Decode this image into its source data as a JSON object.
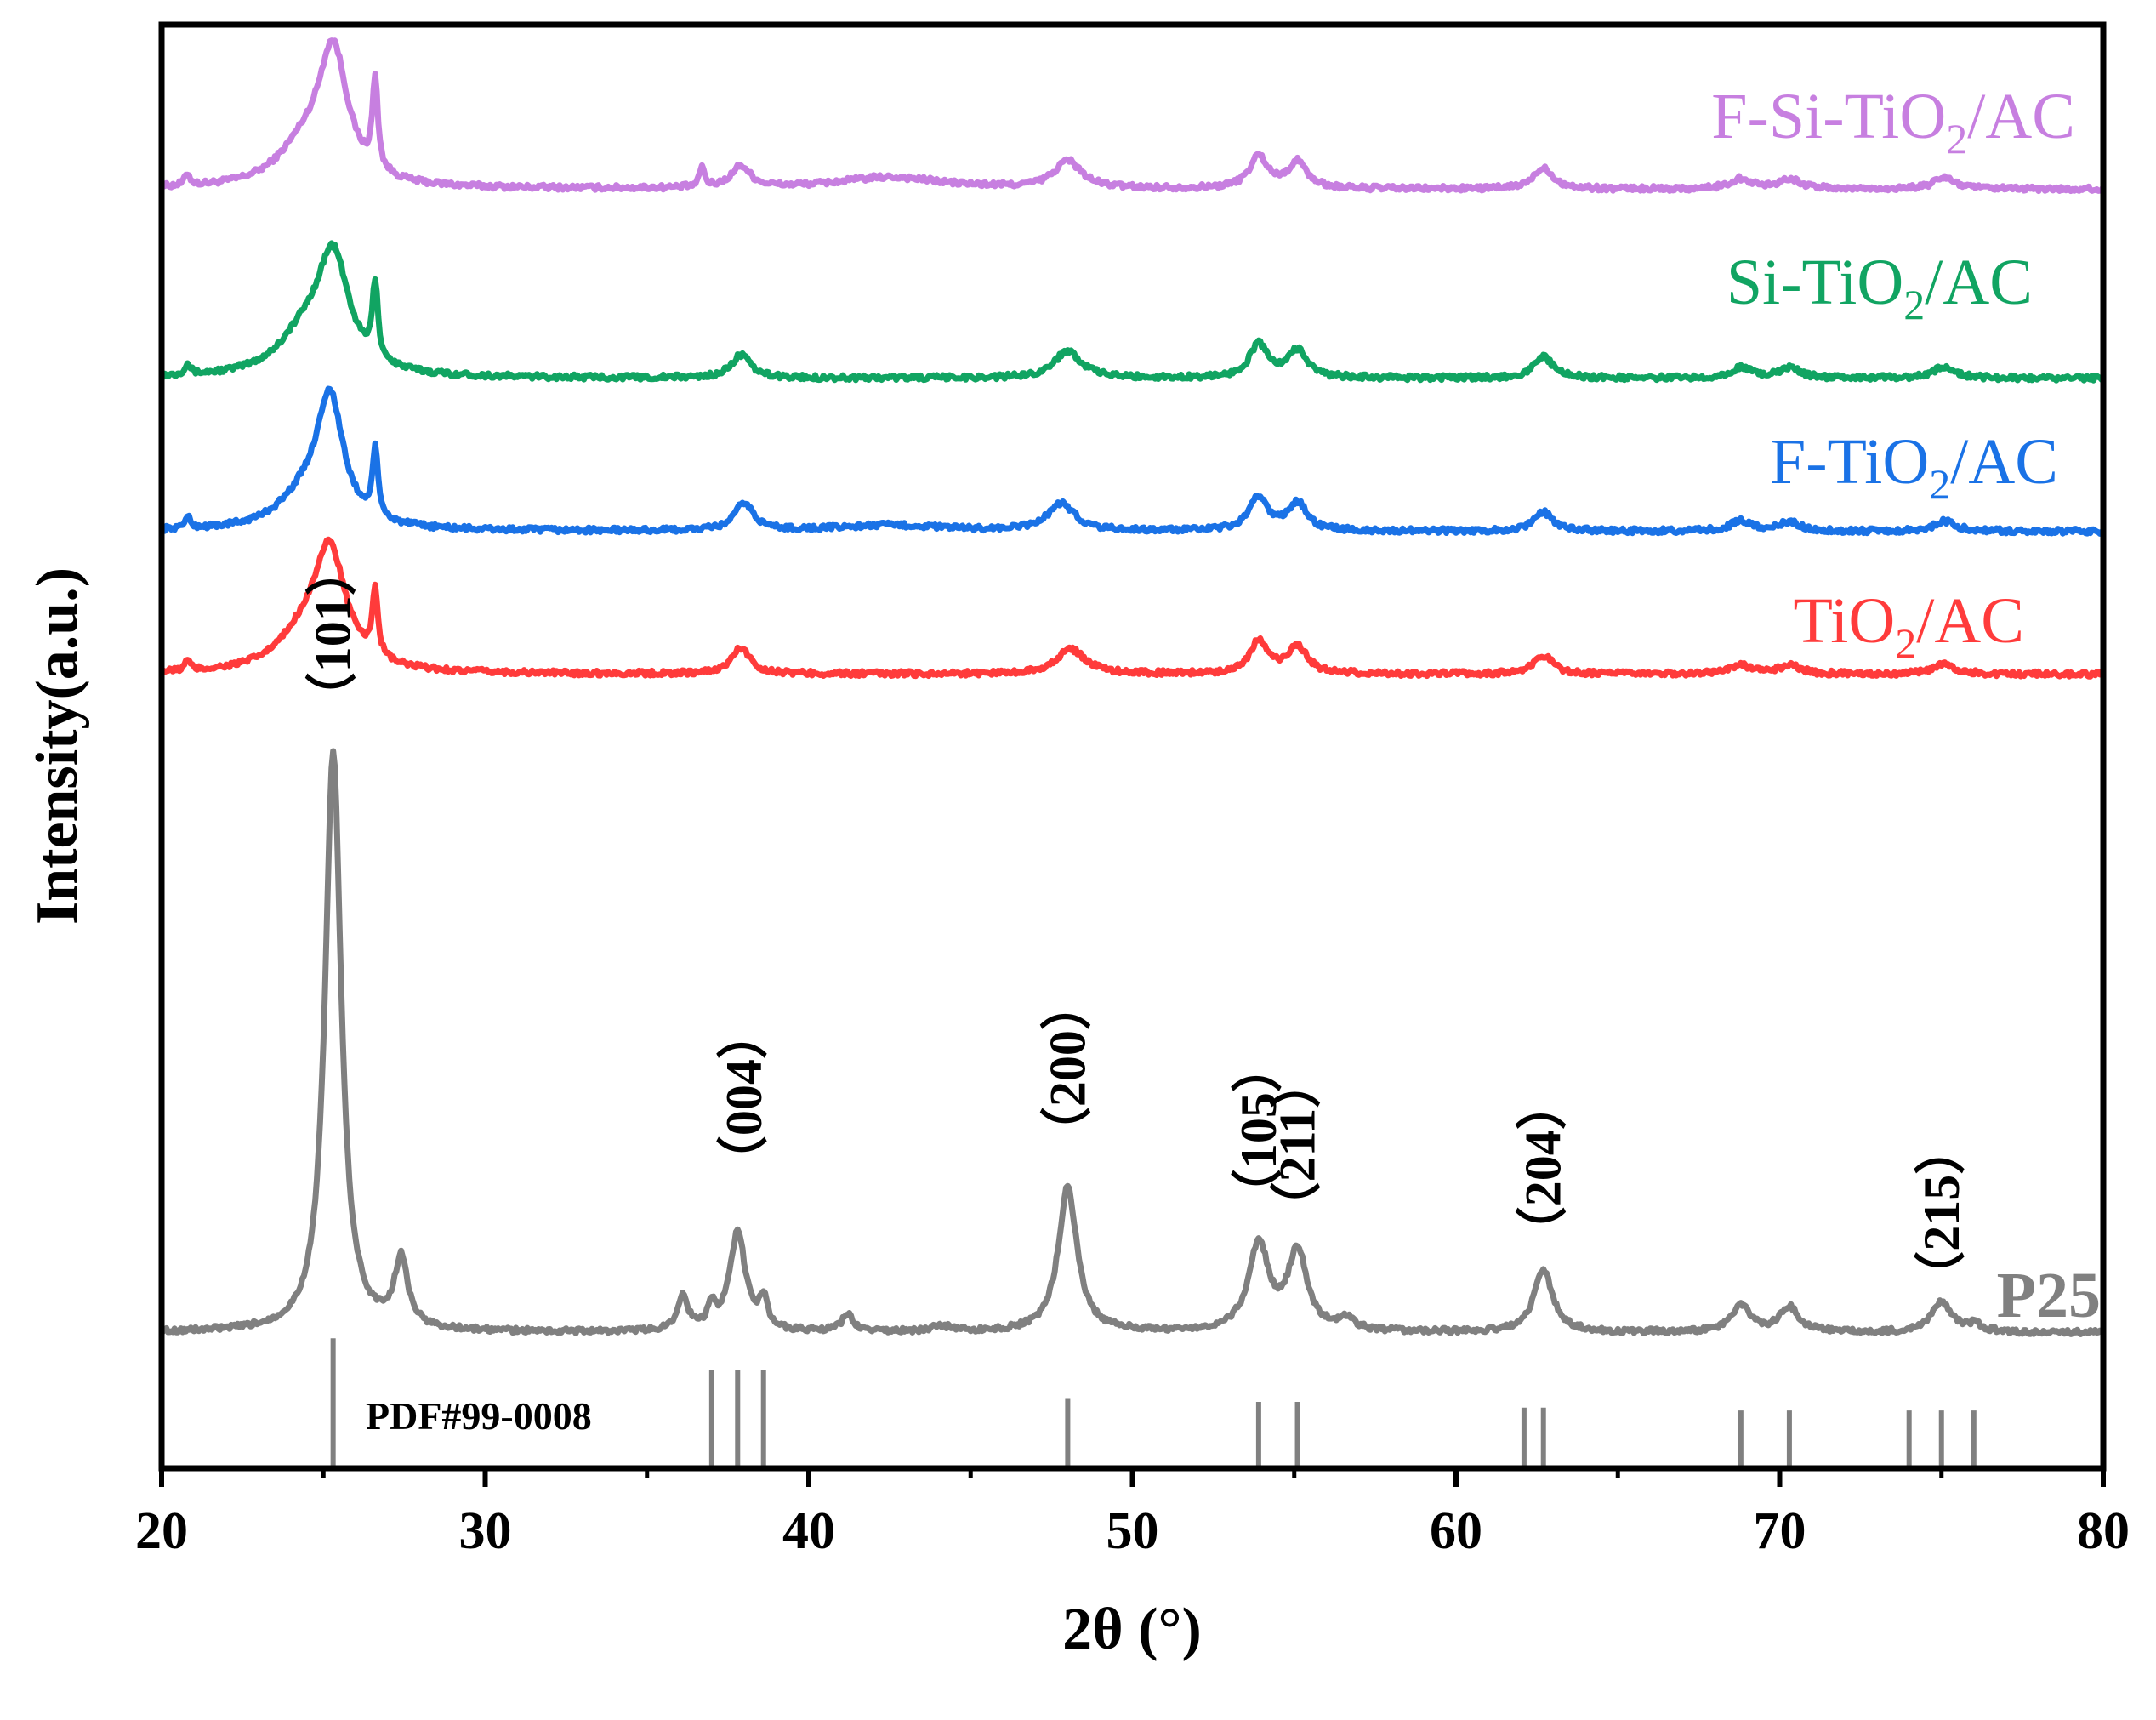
{
  "chart_data": {
    "type": "line",
    "title": "",
    "xlabel": "2θ (°)",
    "ylabel": "Intensity(a.u.)",
    "xlim": [
      20,
      80
    ],
    "ylim": [
      0,
      100
    ],
    "xticks": [
      20,
      30,
      40,
      50,
      60,
      70,
      80
    ],
    "xtick_labels": [
      "20",
      "30",
      "40",
      "50",
      "60",
      "70",
      "80"
    ],
    "series": [
      {
        "name": "F-Si-TiO2/AC",
        "label_main": "F-Si-TiO",
        "label_sub": "2",
        "label_tail": "/AC",
        "color": "#c77fe0",
        "baseline": 88.6,
        "peaks": [
          {
            "x": 25.3,
            "h": 8.9,
            "w": 0.55
          },
          {
            "x": 24.4,
            "h": 2.5,
            "w": 1.0
          },
          {
            "x": 26.6,
            "h": 6.2,
            "w": 0.1
          },
          {
            "x": 20.8,
            "h": 0.8,
            "w": 0.1
          },
          {
            "x": 36.7,
            "h": 1.5,
            "w": 0.08
          },
          {
            "x": 37.9,
            "h": 1.5,
            "w": 0.35
          },
          {
            "x": 42.5,
            "h": 0.8,
            "w": 2.0
          },
          {
            "x": 48.0,
            "h": 1.9,
            "w": 0.5
          },
          {
            "x": 53.9,
            "h": 2.2,
            "w": 0.35
          },
          {
            "x": 55.1,
            "h": 1.8,
            "w": 0.35
          },
          {
            "x": 62.7,
            "h": 1.5,
            "w": 0.35
          },
          {
            "x": 68.8,
            "h": 0.7,
            "w": 0.4
          },
          {
            "x": 70.3,
            "h": 0.7,
            "w": 0.4
          },
          {
            "x": 75.1,
            "h": 0.8,
            "w": 0.4
          }
        ]
      },
      {
        "name": "Si-TiO2/AC",
        "label_main": "Si-TiO",
        "label_sub": "2",
        "label_tail": "/AC",
        "color": "#11a462",
        "baseline": 75.5,
        "peaks": [
          {
            "x": 25.3,
            "h": 7.8,
            "w": 0.6
          },
          {
            "x": 24.4,
            "h": 2.5,
            "w": 1.0
          },
          {
            "x": 26.6,
            "h": 5.2,
            "w": 0.1
          },
          {
            "x": 20.8,
            "h": 0.8,
            "w": 0.1
          },
          {
            "x": 37.9,
            "h": 1.6,
            "w": 0.35
          },
          {
            "x": 48.0,
            "h": 1.9,
            "w": 0.5
          },
          {
            "x": 53.9,
            "h": 2.3,
            "w": 0.35
          },
          {
            "x": 55.1,
            "h": 1.9,
            "w": 0.35
          },
          {
            "x": 62.7,
            "h": 1.5,
            "w": 0.35
          },
          {
            "x": 68.8,
            "h": 0.7,
            "w": 0.4
          },
          {
            "x": 70.3,
            "h": 0.7,
            "w": 0.4
          },
          {
            "x": 75.1,
            "h": 0.8,
            "w": 0.4
          }
        ]
      },
      {
        "name": "F-TiO2/AC",
        "label_main": "F-TiO",
        "label_sub": "2",
        "label_tail": "/AC",
        "color": "#1a72e6",
        "baseline": 64.9,
        "peaks": [
          {
            "x": 25.2,
            "h": 8.6,
            "w": 0.5
          },
          {
            "x": 24.4,
            "h": 2.0,
            "w": 1.0
          },
          {
            "x": 26.6,
            "h": 4.7,
            "w": 0.1
          },
          {
            "x": 20.8,
            "h": 0.8,
            "w": 0.1
          },
          {
            "x": 38.0,
            "h": 1.9,
            "w": 0.35
          },
          {
            "x": 42.5,
            "h": 0.4,
            "w": 2.0
          },
          {
            "x": 47.8,
            "h": 1.9,
            "w": 0.5
          },
          {
            "x": 53.9,
            "h": 2.3,
            "w": 0.35
          },
          {
            "x": 55.1,
            "h": 1.9,
            "w": 0.35
          },
          {
            "x": 62.7,
            "h": 1.3,
            "w": 0.35
          },
          {
            "x": 68.8,
            "h": 0.7,
            "w": 0.4
          },
          {
            "x": 70.3,
            "h": 0.6,
            "w": 0.4
          },
          {
            "x": 75.1,
            "h": 0.7,
            "w": 0.4
          }
        ]
      },
      {
        "name": "TiO2/AC",
        "label_main": "TiO",
        "label_sub": "2",
        "label_tail": "/AC",
        "color": "#ff3b3b",
        "baseline": 55.0,
        "peaks": [
          {
            "x": 25.2,
            "h": 7.8,
            "w": 0.6
          },
          {
            "x": 24.4,
            "h": 2.2,
            "w": 1.0
          },
          {
            "x": 26.6,
            "h": 4.7,
            "w": 0.1
          },
          {
            "x": 20.8,
            "h": 0.7,
            "w": 0.1
          },
          {
            "x": 37.9,
            "h": 1.8,
            "w": 0.35
          },
          {
            "x": 48.1,
            "h": 1.7,
            "w": 0.55
          },
          {
            "x": 53.9,
            "h": 2.2,
            "w": 0.35
          },
          {
            "x": 55.1,
            "h": 1.9,
            "w": 0.35
          },
          {
            "x": 62.7,
            "h": 1.3,
            "w": 0.35
          },
          {
            "x": 68.8,
            "h": 0.6,
            "w": 0.4
          },
          {
            "x": 70.3,
            "h": 0.6,
            "w": 0.4
          },
          {
            "x": 75.1,
            "h": 0.7,
            "w": 0.4
          }
        ]
      },
      {
        "name": "P25",
        "label_main": "P25",
        "label_sub": "",
        "label_tail": "",
        "color": "#808080",
        "baseline": 9.4,
        "peaks": [
          {
            "x": 25.3,
            "h": 40.2,
            "w": 0.3
          },
          {
            "x": 27.4,
            "h": 4.7,
            "w": 0.25
          },
          {
            "x": 36.1,
            "h": 2.4,
            "w": 0.2
          },
          {
            "x": 37.0,
            "h": 1.4,
            "w": 0.15
          },
          {
            "x": 37.8,
            "h": 6.8,
            "w": 0.3
          },
          {
            "x": 38.6,
            "h": 2.0,
            "w": 0.15
          },
          {
            "x": 41.2,
            "h": 1.2,
            "w": 0.2
          },
          {
            "x": 44.1,
            "h": 0.4,
            "w": 0.3
          },
          {
            "x": 48.0,
            "h": 10.0,
            "w": 0.35
          },
          {
            "x": 53.9,
            "h": 6.0,
            "w": 0.38
          },
          {
            "x": 55.1,
            "h": 5.5,
            "w": 0.35
          },
          {
            "x": 56.6,
            "h": 0.8,
            "w": 0.3
          },
          {
            "x": 62.7,
            "h": 4.3,
            "w": 0.35
          },
          {
            "x": 68.8,
            "h": 1.8,
            "w": 0.35
          },
          {
            "x": 70.3,
            "h": 1.7,
            "w": 0.35
          },
          {
            "x": 75.0,
            "h": 2.1,
            "w": 0.35
          },
          {
            "x": 76.0,
            "h": 0.5,
            "w": 0.3
          }
        ]
      }
    ],
    "peak_annotations": [
      {
        "label": "（101）",
        "x": 25.3,
        "y": 51.6
      },
      {
        "label": "（004）",
        "x": 38.0,
        "y": 19.5
      },
      {
        "label": "（200）",
        "x": 48.0,
        "y": 21.5
      },
      {
        "label": "（105）",
        "x": 53.9,
        "y": 17.2
      },
      {
        "label": "（211）",
        "x": 55.1,
        "y": 16.3
      },
      {
        "label": "（204）",
        "x": 62.7,
        "y": 14.6
      },
      {
        "label": "（215）",
        "x": 75.0,
        "y": 11.5
      }
    ],
    "reference": {
      "label": "PDF#99-0008",
      "lines": [
        {
          "x": 25.3,
          "h": 9.0
        },
        {
          "x": 37.0,
          "h": 6.8
        },
        {
          "x": 37.8,
          "h": 6.8
        },
        {
          "x": 38.6,
          "h": 6.8
        },
        {
          "x": 48.0,
          "h": 4.8
        },
        {
          "x": 53.9,
          "h": 4.6
        },
        {
          "x": 55.1,
          "h": 4.6
        },
        {
          "x": 62.1,
          "h": 4.2
        },
        {
          "x": 62.7,
          "h": 4.2
        },
        {
          "x": 68.8,
          "h": 4.0
        },
        {
          "x": 70.3,
          "h": 4.0
        },
        {
          "x": 74.0,
          "h": 4.0
        },
        {
          "x": 75.0,
          "h": 4.0
        },
        {
          "x": 76.0,
          "h": 4.0
        }
      ]
    }
  }
}
